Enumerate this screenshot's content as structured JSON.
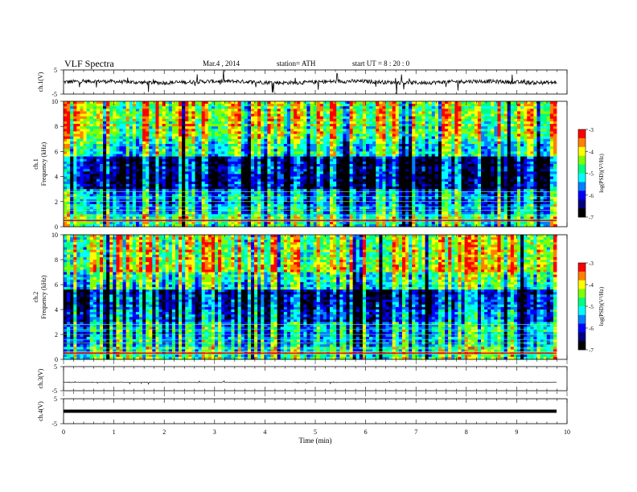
{
  "header": {
    "title": "VLF  Spectra",
    "date": "Mar.4   , 2014",
    "station": "station= ATH",
    "start": "start  UT  =    8  : 20 : 0"
  },
  "xaxis": {
    "label": "Time  (min)",
    "range": [
      0,
      10
    ],
    "ticks": [
      "0",
      "1",
      "2",
      "3",
      "4",
      "5",
      "6",
      "7",
      "8",
      "9",
      "10"
    ],
    "data_end": 9.8
  },
  "panels": [
    {
      "id": "ch1-waveform",
      "ylabel": "ch.1(V)",
      "ticks": [
        "5",
        "-5"
      ],
      "ylim": [
        -5,
        5
      ],
      "baseline": 0,
      "noise": "strong"
    },
    {
      "id": "ch1-spectrogram",
      "ylabel_top": "ch.1",
      "ylabel": "Frequency  (kHz)",
      "ticks": [
        "0",
        "2",
        "4",
        "6",
        "8",
        "10"
      ],
      "ylim": [
        0,
        10
      ],
      "colorbar": {
        "label": "log(PSD)(V²/Hz)",
        "ticks": [
          "-3",
          "-4",
          "-5",
          "-6",
          "-7"
        ],
        "range": [
          -7,
          -3
        ]
      }
    },
    {
      "id": "ch2-spectrogram",
      "ylabel_top": "ch.2",
      "ylabel": "Frequency  (kHz)",
      "ticks": [
        "0",
        "2",
        "4",
        "6",
        "8",
        "10"
      ],
      "ylim": [
        0,
        10
      ],
      "colorbar": {
        "label": "log(PSD)(V²/Hz)",
        "ticks": [
          "-3",
          "-4",
          "-5",
          "-6",
          "-7"
        ],
        "range": [
          -7,
          -3
        ]
      }
    },
    {
      "id": "ch3-waveform",
      "ylabel": "ch.3(V)",
      "ticks": [
        "5",
        "-5"
      ],
      "ylim": [
        -5,
        5
      ],
      "baseline": -1.5,
      "noise": "weak"
    },
    {
      "id": "ch4-waveform",
      "ylabel": "ch.4(V)",
      "ticks": [
        "5",
        "-5"
      ],
      "ylim": [
        -5,
        5
      ],
      "baseline": 0,
      "noise": "flat"
    }
  ],
  "chart_data": {
    "type": "heatmap",
    "title": "VLF  Spectra",
    "xlabel": "Time  (min)",
    "xlim": [
      0,
      10
    ],
    "series": [
      {
        "name": "ch.1",
        "kind": "waveform",
        "ylabel": "ch.1(V)",
        "ylim": [
          -5,
          5
        ],
        "approx_level": 0
      },
      {
        "name": "ch.1",
        "kind": "spectrogram",
        "ylabel": "Frequency  (kHz)",
        "ylim": [
          0,
          10
        ],
        "clim": [
          -7,
          -3
        ]
      },
      {
        "name": "ch.2",
        "kind": "spectrogram",
        "ylabel": "Frequency  (kHz)",
        "ylim": [
          0,
          10
        ],
        "clim": [
          -7,
          -3
        ]
      },
      {
        "name": "ch.3",
        "kind": "waveform",
        "ylabel": "ch.3(V)",
        "ylim": [
          -5,
          5
        ],
        "approx_level": -1.5
      },
      {
        "name": "ch.4",
        "kind": "waveform",
        "ylabel": "ch.4(V)",
        "ylim": [
          -5,
          5
        ],
        "approx_level": 0
      }
    ],
    "colorbar_label": "log(PSD)(V²/Hz)",
    "colormap": [
      "#000000",
      "#000080",
      "#0000ff",
      "#0080ff",
      "#00ffff",
      "#00ff80",
      "#80ff00",
      "#ffff00",
      "#ff8000",
      "#ff0000",
      "#ffffff"
    ]
  }
}
